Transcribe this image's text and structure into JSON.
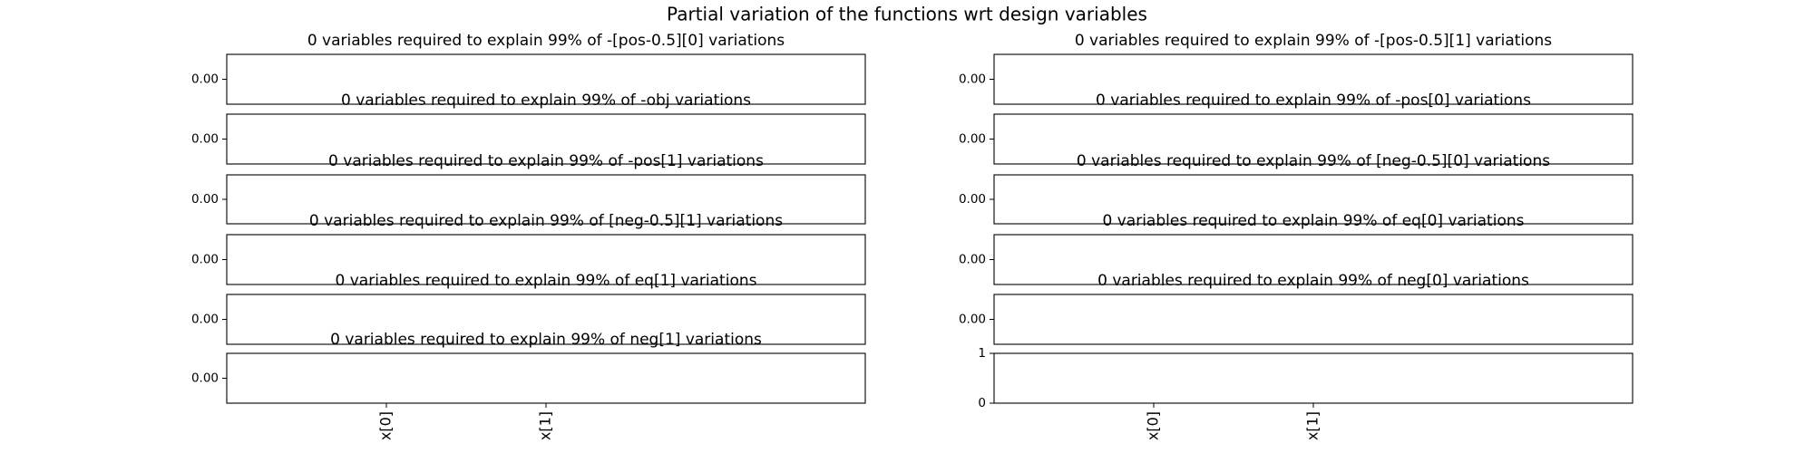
{
  "suptitle": "Partial variation of the functions wrt design variables",
  "chart_data": [
    {
      "type": "bar",
      "title": "0 variables required to explain 99% of -[pos-0.5][0] variations",
      "ylim": [
        -0.055,
        0.055
      ],
      "yticks": [
        {
          "value": 0,
          "label": "0.00"
        }
      ]
    },
    {
      "type": "bar",
      "title": "0 variables required to explain 99% of -[pos-0.5][1] variations",
      "ylim": [
        -0.055,
        0.055
      ],
      "yticks": [
        {
          "value": 0,
          "label": "0.00"
        }
      ]
    },
    {
      "type": "bar",
      "title": "0 variables required to explain 99% of -obj variations",
      "ylim": [
        -0.055,
        0.055
      ],
      "yticks": [
        {
          "value": 0,
          "label": "0.00"
        }
      ]
    },
    {
      "type": "bar",
      "title": "0 variables required to explain 99% of -pos[0] variations",
      "ylim": [
        -0.055,
        0.055
      ],
      "yticks": [
        {
          "value": 0,
          "label": "0.00"
        }
      ]
    },
    {
      "type": "bar",
      "title": "0 variables required to explain 99% of -pos[1] variations",
      "ylim": [
        -0.055,
        0.055
      ],
      "yticks": [
        {
          "value": 0,
          "label": "0.00"
        }
      ]
    },
    {
      "type": "bar",
      "title": "0 variables required to explain 99% of [neg-0.5][0] variations",
      "ylim": [
        -0.055,
        0.055
      ],
      "yticks": [
        {
          "value": 0,
          "label": "0.00"
        }
      ]
    },
    {
      "type": "bar",
      "title": "0 variables required to explain 99% of [neg-0.5][1] variations",
      "ylim": [
        -0.055,
        0.055
      ],
      "yticks": [
        {
          "value": 0,
          "label": "0.00"
        }
      ]
    },
    {
      "type": "bar",
      "title": "0 variables required to explain 99% of eq[0] variations",
      "ylim": [
        -0.055,
        0.055
      ],
      "yticks": [
        {
          "value": 0,
          "label": "0.00"
        }
      ]
    },
    {
      "type": "bar",
      "title": "0 variables required to explain 99% of eq[1] variations",
      "ylim": [
        -0.055,
        0.055
      ],
      "yticks": [
        {
          "value": 0,
          "label": "0.00"
        }
      ]
    },
    {
      "type": "bar",
      "title": "0 variables required to explain 99% of neg[0] variations",
      "ylim": [
        -0.055,
        0.055
      ],
      "yticks": [
        {
          "value": 0,
          "label": "0.00"
        }
      ]
    },
    {
      "type": "bar",
      "title": "0 variables required to explain 99% of neg[1] variations",
      "ylim": [
        -0.055,
        0.055
      ],
      "yticks": [
        {
          "value": 0,
          "label": "0.00"
        }
      ],
      "categories": [
        "x[0]",
        "x[1]"
      ],
      "xlim": [
        -1,
        3
      ]
    },
    {
      "type": "bar",
      "ylim": [
        0,
        1
      ],
      "yticks": [
        0,
        1
      ],
      "categories": [
        "x[0]",
        "x[1]"
      ],
      "xlim": [
        -1,
        3
      ]
    }
  ]
}
